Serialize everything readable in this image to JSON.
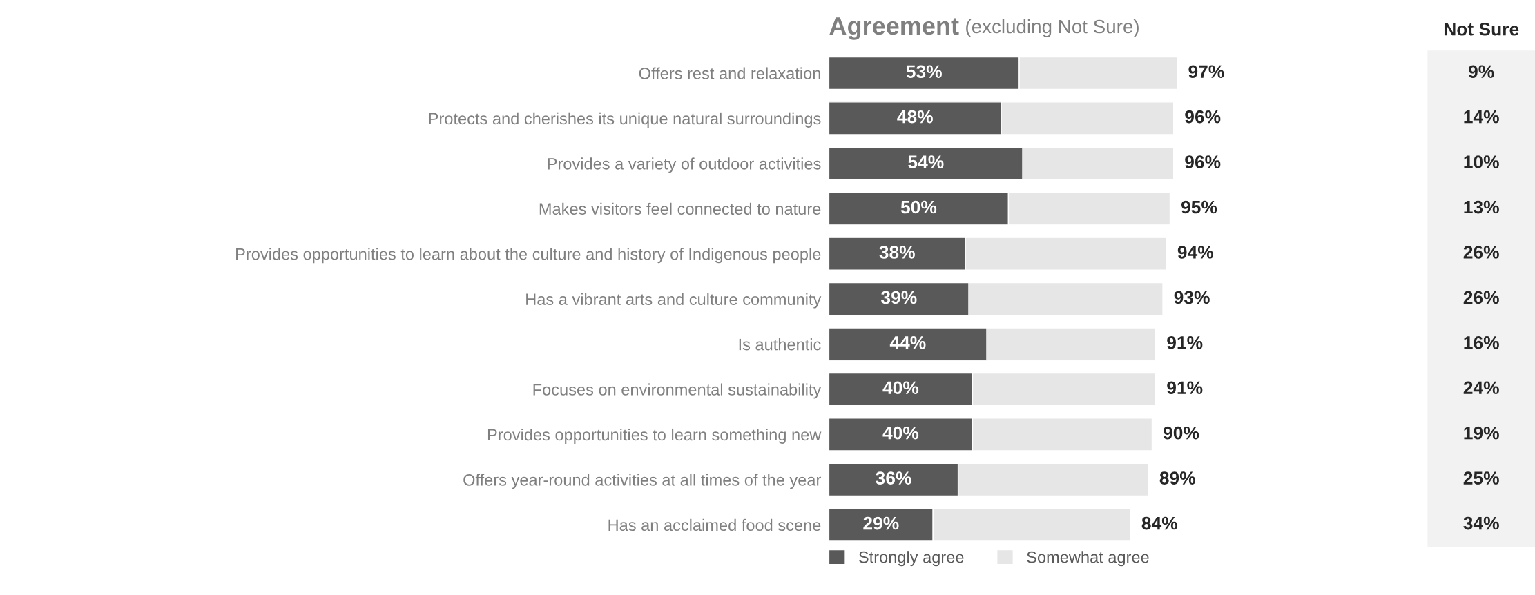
{
  "chart_data": [
    {
      "type": "bar",
      "orientation": "horizontal",
      "stacked": true,
      "title": "Agreement",
      "subtitle": "(excluding Not Sure)",
      "categories": [
        "Offers rest and relaxation",
        "Protects and cherishes its unique natural surroundings",
        "Provides a variety of outdoor activities",
        "Makes visitors feel connected to nature",
        "Provides opportunities to learn about the culture and history of Indigenous people",
        "Has a vibrant arts and culture community",
        "Is authentic",
        "Focuses on environmental sustainability",
        "Provides opportunities to learn something new",
        "Offers year-round activities at all times of the year",
        "Has an acclaimed food scene"
      ],
      "series": [
        {
          "name": "Strongly agree",
          "color": "#595959",
          "values": [
            53,
            48,
            54,
            50,
            38,
            39,
            44,
            40,
            40,
            36,
            29
          ],
          "value_labels": [
            "53%",
            "48%",
            "54%",
            "50%",
            "38%",
            "39%",
            "44%",
            "40%",
            "40%",
            "36%",
            "29%"
          ]
        },
        {
          "name": "Somewhat agree",
          "color": "#e6e6e6",
          "values": [
            44,
            48,
            42,
            45,
            56,
            54,
            47,
            51,
            50,
            53,
            55
          ]
        }
      ],
      "totals": [
        "97%",
        "96%",
        "96%",
        "95%",
        "94%",
        "93%",
        "91%",
        "91%",
        "90%",
        "89%",
        "84%"
      ],
      "tick_labels": "y",
      "legend": "bottom",
      "grid": false
    },
    {
      "type": "other",
      "title": "Not Sure",
      "value_labels": [
        "9%",
        "14%",
        "10%",
        "13%",
        "26%",
        "26%",
        "16%",
        "24%",
        "19%",
        "25%",
        "34%"
      ]
    }
  ]
}
